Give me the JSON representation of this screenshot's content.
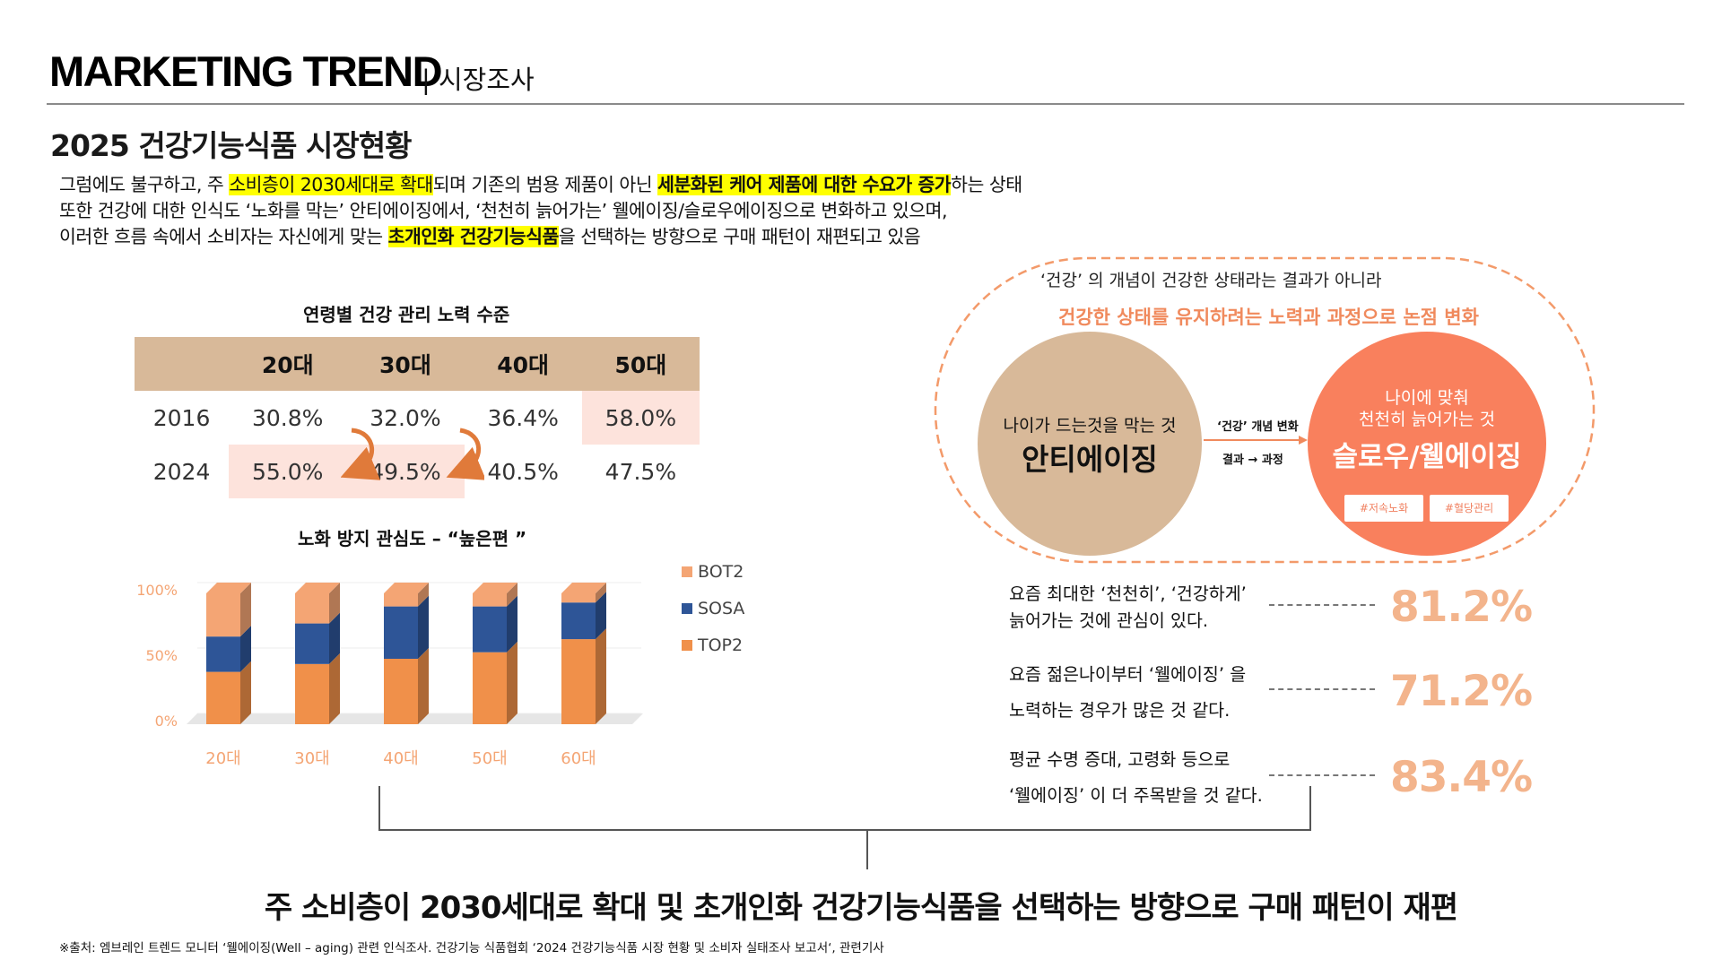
{
  "header": {
    "title": "MARKETING TREND",
    "subtitle": "| 시장조사"
  },
  "section_title": "2025 건강기능식품 시장현황",
  "intro": {
    "line1_a": "그럼에도 불구하고, 주 ",
    "line1_hl1": "소비층이 2030세대로 확대",
    "line1_b": "되며 기존의 범용 제품이 아닌 ",
    "line1_hl2": "세분화된 케어 제품에 대한 수요가 증가",
    "line1_c": "하는 상태",
    "line2": "또한 건강에 대한 인식도 ‘노화를 막는’ 안티에이징에서, ‘천천히 늙어가는’ 웰에이징/슬로우에이징으로 변화하고 있으며,",
    "line3_a": "이러한 흐름 속에서 소비자는 자신에게 맞는 ",
    "line3_hl": "초개인화 건강기능식품",
    "line3_b": "을 선택하는 방향으로 구매 패턴이 재편되고 있음"
  },
  "age_table": {
    "title": "연령별 건강 관리 노력 수준",
    "headers": [
      "",
      "20대",
      "30대",
      "40대",
      "50대"
    ],
    "rows": [
      [
        "2016",
        "30.8%",
        "32.0%",
        "36.4%",
        "58.0%"
      ],
      [
        "2024",
        "55.0%",
        "49.5%",
        "40.5%",
        "47.5%"
      ]
    ]
  },
  "chart_data": {
    "type": "bar",
    "stacked": true,
    "title": "노화 방지 관심도 – “높은편 ”",
    "categories": [
      "20대",
      "30대",
      "40대",
      "50대",
      "60대"
    ],
    "series": [
      {
        "name": "TOP2",
        "values": [
          40,
          46,
          50,
          55,
          65
        ]
      },
      {
        "name": "SOSA",
        "values": [
          27,
          31,
          40,
          35,
          28
        ]
      },
      {
        "name": "BOT2",
        "values": [
          33,
          23,
          10,
          10,
          7
        ]
      }
    ],
    "legend_order": [
      "BOT2",
      "SOSA",
      "TOP2"
    ],
    "colors": {
      "TOP2": "#f0904a",
      "SOSA": "#2e5597",
      "BOT2": "#f4a574"
    },
    "ylim": [
      0,
      100
    ],
    "yticks": [
      "0%",
      "50%",
      "100%"
    ],
    "legend_position": "right"
  },
  "concept": {
    "question": "‘건강’ 의 개념이 건강한 상태라는 결과가 아니라",
    "headline": "건강한 상태를 유지하려는 노력과 과정으로 논점 변화",
    "left_small": "나이가 드는것을 막는 것",
    "left_big": "안티에이징",
    "mid_top": "‘건강’ 개념 변화",
    "mid_bottom": "결과 → 과정",
    "right_small1": "나이에 맞춰",
    "right_small2": "천천히 늙어가는 것",
    "right_big": "슬로우/웰에이징",
    "tag1": "#저속노화",
    "tag2": "#혈당관리"
  },
  "stats": [
    {
      "line1": "요즘 최대한 ‘천천히’, ‘건강하게’",
      "line2": "늙어가는 것에 관심이 있다.",
      "value": "81.2%"
    },
    {
      "line1": "요즘 젊은나이부터 ‘웰에이징’ 을",
      "line2": "노력하는 경우가 많은 것 같다.",
      "value": "71.2%"
    },
    {
      "line1": "평균 수명 증대, 고령화 등으로",
      "line2": "‘웰에이징’ 이 더 주목받을 것 같다.",
      "value": "83.4%"
    }
  ],
  "summary": "주 소비층이 2030세대로 확대 및 초개인화 건강기능식품을 선택하는 방향으로 구매 패턴이 재편",
  "source": "※출처: 엠브레인 트렌드 모니터 ‘웰에이징(Well – aging) 관련 인식조사. 건강기능 식품협회 ‘2024 건강기능식품 시장 현황 및 소비자 실태조사 보고서‘, 관련기사",
  "colors": {
    "accent": "#f08a5d",
    "tan": "#d8b999",
    "pink": "#fde3dc",
    "stat": "#f3b48c"
  }
}
